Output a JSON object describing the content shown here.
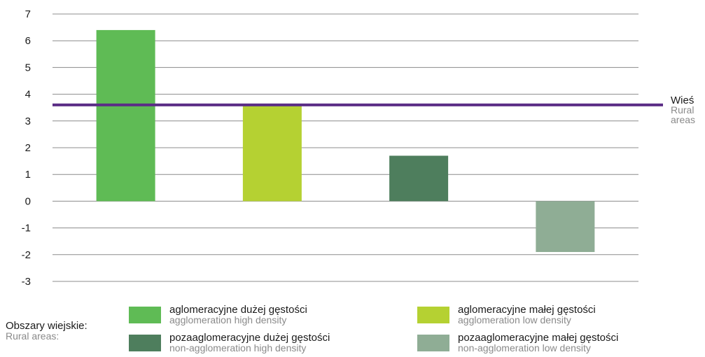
{
  "chart_data": {
    "type": "bar",
    "categories": [
      "aglomeracyjne dużej gęstości",
      "aglomeracyjne małej gęstości",
      "pozaaglomeracyjne dużej gęstości",
      "pozaaglomeracyjne małej gęstości"
    ],
    "values": [
      6.4,
      3.6,
      1.7,
      -1.9
    ],
    "colors": [
      "#5fbb55",
      "#b5d132",
      "#4e7e5d",
      "#8fad95"
    ],
    "ylim": [
      -3,
      7
    ],
    "yticks": [
      7,
      6,
      5,
      4,
      3,
      2,
      1,
      0,
      -1,
      -2,
      -3
    ],
    "grid": true,
    "reference_line": {
      "value": 3.6,
      "color": "#5b2d86",
      "label_pl": "Wieś",
      "label_en_line1": "Rural",
      "label_en_line2": "areas"
    },
    "legend": {
      "title_pl": "Obszary wiejskie:",
      "title_en": "Rural areas:",
      "items": [
        {
          "pl": "aglomeracyjne dużej gęstości",
          "en": "agglomeration high density",
          "color": "#5fbb55"
        },
        {
          "pl": "aglomeracyjne małej gęstości",
          "en": "agglomeration low density",
          "color": "#b5d132"
        },
        {
          "pl": "pozaaglomeracyjne dużej gęstości",
          "en": "non-agglomeration high density",
          "color": "#4e7e5d"
        },
        {
          "pl": "pozaaglomeracyjne małej gęstości",
          "en": "non-agglomeration low density",
          "color": "#8fad95"
        }
      ]
    }
  }
}
